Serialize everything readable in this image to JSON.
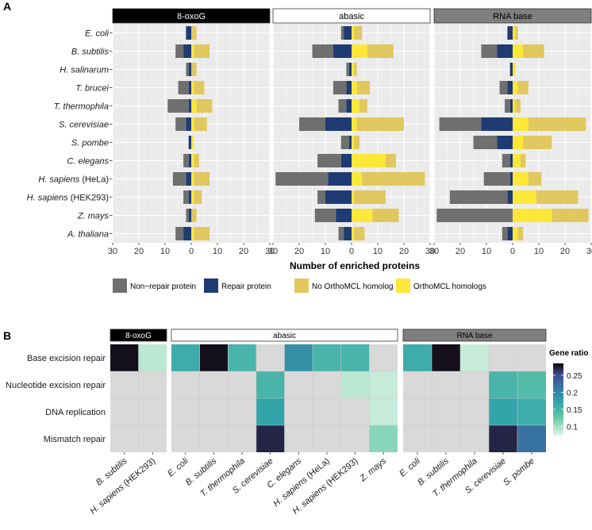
{
  "panel_a": {
    "label": "A",
    "chart_data": {
      "type": "bar",
      "title": "",
      "xlabel": "Number of enriched proteins",
      "xlim": [
        -30,
        30
      ],
      "ticks": [
        30,
        20,
        10,
        0,
        10,
        20,
        30
      ],
      "tick_values": [
        -30,
        -20,
        -10,
        0,
        10,
        20,
        30
      ],
      "categories": [
        "E. coli",
        "B. subtilis",
        "H. salinarum",
        "T. brucei",
        "T. thermophila",
        "S. cerevisiae",
        "S. pombe",
        "C. elegans",
        "H. sapiens (HeLa)",
        "H. sapiens (HEK293)",
        "Z. mays",
        "A. thaliana"
      ],
      "facets": [
        {
          "name": "8-oxoG",
          "header_style": "dark",
          "nonrepair": [
            0,
            3,
            1,
            4,
            8,
            4,
            0,
            2,
            5,
            2,
            1,
            3
          ],
          "repair": [
            2,
            3,
            1,
            1,
            1,
            2,
            1,
            1,
            2,
            1,
            1,
            3
          ],
          "no_homolog": [
            2,
            6,
            2,
            4,
            6,
            5,
            0,
            2,
            6,
            3,
            2,
            6
          ],
          "homolog": [
            0,
            1,
            0,
            1,
            2,
            1,
            1,
            1,
            1,
            1,
            0,
            1
          ]
        },
        {
          "name": "abasic",
          "header_style": "light",
          "nonrepair": [
            1,
            8,
            1,
            5,
            3,
            10,
            3,
            9,
            20,
            3,
            8,
            2
          ],
          "repair": [
            3,
            7,
            1,
            2,
            2,
            10,
            1,
            4,
            9,
            10,
            6,
            3
          ],
          "no_homolog": [
            3,
            10,
            1,
            5,
            3,
            18,
            2,
            4,
            24,
            12,
            10,
            4
          ],
          "homolog": [
            1,
            6,
            1,
            2,
            3,
            2,
            1,
            13,
            4,
            1,
            8,
            1
          ]
        },
        {
          "name": "RNA base",
          "header_style": "mid",
          "nonrepair": [
            0,
            6,
            0,
            3,
            2,
            16,
            9,
            3,
            10,
            22,
            29,
            2
          ],
          "repair": [
            2,
            6,
            1,
            2,
            1,
            12,
            6,
            1,
            1,
            2,
            0,
            2
          ],
          "no_homolog": [
            1,
            8,
            0,
            4,
            2,
            22,
            11,
            2,
            5,
            16,
            14,
            2
          ],
          "homolog": [
            1,
            4,
            1,
            2,
            1,
            6,
            4,
            3,
            6,
            9,
            15,
            2
          ]
        }
      ],
      "legend": [
        {
          "label": "Non−repair protein",
          "color": "#6f6f6f"
        },
        {
          "label": "Repair protein",
          "color": "#1e3b73"
        },
        {
          "label": "No OrthoMCL homolog",
          "color": "#e1c85e"
        },
        {
          "label": "OrthoMCL homologs",
          "color": "#fde737"
        }
      ]
    }
  },
  "panel_b": {
    "label": "B",
    "chart_data": {
      "type": "heatmap",
      "rows": [
        "Base excision repair",
        "Nucleotide excision repair",
        "DNA replication",
        "Mismatch repair"
      ],
      "facets": [
        {
          "name": "8-oxoG",
          "header_style": "dark",
          "columns": [
            "B. subtilis",
            "H. sapiens (HEK293)"
          ],
          "values": [
            [
              0.28,
              0.09
            ],
            [
              null,
              null
            ],
            [
              null,
              null
            ],
            [
              null,
              null
            ]
          ]
        },
        {
          "name": "abasic",
          "header_style": "light",
          "columns": [
            "E. coli",
            "B. subtilis",
            "T. thermophila",
            "S. cerevisiae",
            "C. elegans",
            "H. sapiens (HeLa)",
            "H. sapiens (HEK293)",
            "Z. mays"
          ],
          "values": [
            [
              0.16,
              0.28,
              0.15,
              null,
              0.19,
              0.15,
              0.15,
              null
            ],
            [
              null,
              null,
              null,
              0.15,
              null,
              null,
              0.09,
              0.085
            ],
            [
              null,
              null,
              null,
              0.17,
              null,
              null,
              null,
              0.085
            ],
            [
              null,
              null,
              null,
              0.27,
              null,
              null,
              null,
              0.11
            ]
          ]
        },
        {
          "name": "RNA base",
          "header_style": "mid",
          "columns": [
            "E. coli",
            "B. subtilis",
            "T. thermophila",
            "S. cerevisiae",
            "S. pombe"
          ],
          "values": [
            [
              0.16,
              0.28,
              0.085,
              null,
              null
            ],
            [
              null,
              null,
              null,
              0.15,
              0.14
            ],
            [
              null,
              null,
              null,
              0.17,
              0.16
            ],
            [
              null,
              null,
              null,
              0.27,
              0.22
            ]
          ]
        }
      ],
      "colorbar": {
        "title": "Gene ratio",
        "range": [
          0.075,
          0.285
        ],
        "ticks": [
          "0.25",
          "0.2",
          "0.15",
          "0.1"
        ],
        "tick_values": [
          0.25,
          0.2,
          0.15,
          0.1
        ]
      }
    }
  },
  "colors": {
    "nonrepair": "#6f6f6f",
    "repair": "#1e3b73",
    "no_homolog": "#e1c85e",
    "homolog": "#fde737",
    "panel_bg": "#ebebeb",
    "grid": "#ffffff",
    "na_cell": "#d9d9d9",
    "header_dark": "#000000",
    "header_mid": "#7f7f7f",
    "header_light": "#ffffff"
  }
}
